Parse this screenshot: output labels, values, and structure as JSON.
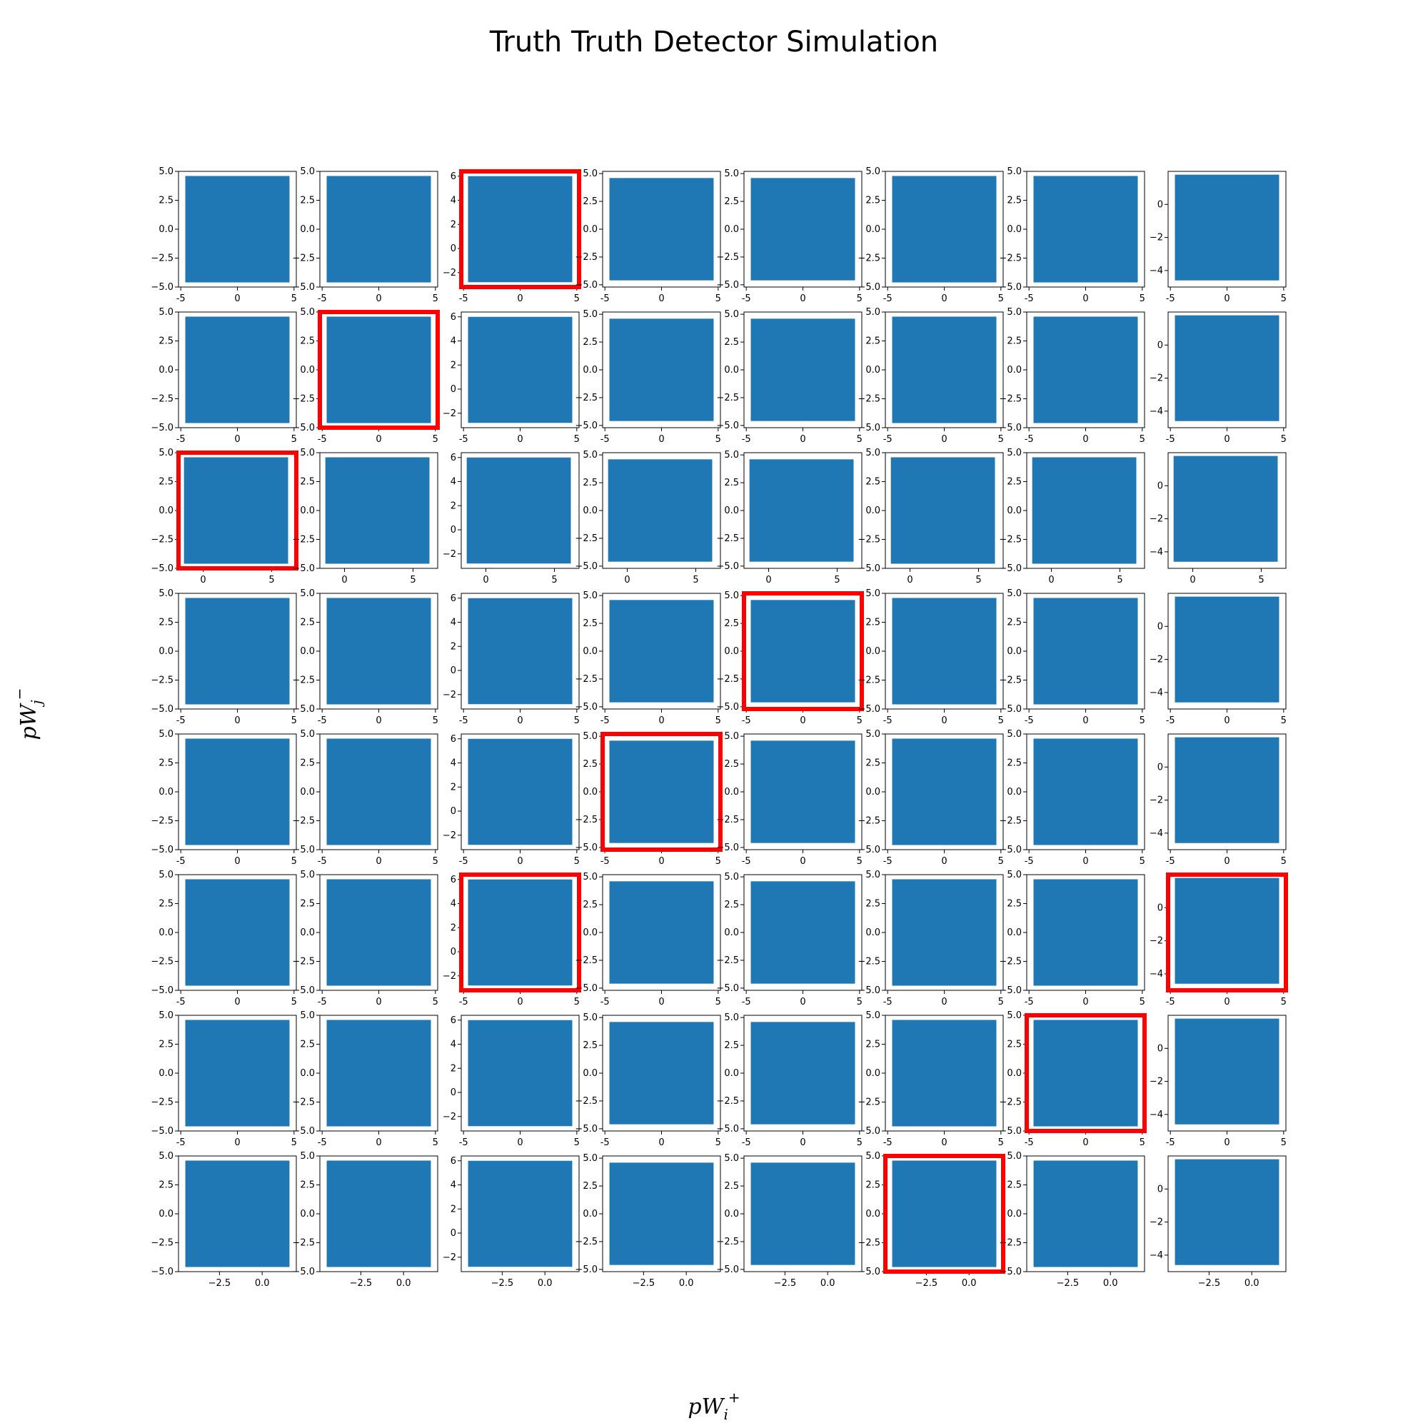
{
  "figure": {
    "title": "Truth Truth Detector Simulation",
    "xlabel": {
      "base": "pW",
      "sub": "i",
      "sup": "+"
    },
    "ylabel": {
      "base": "pW",
      "sub": "j",
      "sup": "−"
    }
  },
  "chart_data": {
    "type": "scatter",
    "title": "Truth Truth Detector Simulation",
    "grid": false,
    "point_color": "#1f77b4",
    "highlight_color": "#ff0000",
    "rows": 8,
    "cols": 8,
    "note_values": "Each subplot is a dense scatter of two truth variables; extents read from axes.",
    "column_xranges": [
      [
        [
          -5.2,
          5.2
        ],
        [
          -5.2,
          5.2
        ],
        [
          -5.2,
          5.2
        ],
        [
          -5.2,
          5.2
        ],
        [
          -5.2,
          5.2
        ],
        [
          -5.2,
          5.2
        ],
        [
          -5.2,
          5.2
        ],
        [
          -5.2,
          5.2
        ]
      ]
    ],
    "xranges_by_row": [
      [
        -5.2,
        5.2
      ],
      [
        -5.2,
        5.2
      ],
      [
        -1.8,
        6.8
      ],
      [
        -5.2,
        5.2
      ],
      [
        -5.2,
        5.2
      ],
      [
        -5.2,
        5.2
      ],
      [
        -5.2,
        5.2
      ],
      [
        -4.9,
        2.0
      ]
    ],
    "xticks_by_row": [
      [
        "-5",
        "0",
        "5"
      ],
      [
        "-5",
        "0",
        "5"
      ],
      [
        "0",
        "5"
      ],
      [
        "-5",
        "0",
        "5"
      ],
      [
        "-5",
        "0",
        "5"
      ],
      [
        "-5",
        "0",
        "5"
      ],
      [
        "-5",
        "0",
        "5"
      ],
      [
        "−2.5",
        "0.0"
      ]
    ],
    "xtickvals_by_row": [
      [
        -5,
        0,
        5
      ],
      [
        -5,
        0,
        5
      ],
      [
        0,
        5
      ],
      [
        -5,
        0,
        5
      ],
      [
        -5,
        0,
        5
      ],
      [
        -5,
        0,
        5
      ],
      [
        -5,
        0,
        5
      ],
      [
        -2.5,
        0
      ]
    ],
    "yranges_by_col": [
      [
        -5.0,
        5.0
      ],
      [
        -5.0,
        5.0
      ],
      [
        -3.2,
        6.4
      ],
      [
        -5.2,
        5.2
      ],
      [
        -5.2,
        5.2
      ],
      [
        -5.0,
        5.0
      ],
      [
        -5.0,
        5.0
      ],
      [
        -5.0,
        2.0
      ]
    ],
    "yticks_by_col": [
      [
        "−5.0",
        "−2.5",
        "0.0",
        "2.5",
        "5.0"
      ],
      [
        "−5.0",
        "−2.5",
        "0.0",
        "2.5",
        "5.0"
      ],
      [
        "−2",
        "0",
        "2",
        "4",
        "6"
      ],
      [
        "−5.0",
        "−2.5",
        "0.0",
        "2.5",
        "5.0"
      ],
      [
        "−5.0",
        "−2.5",
        "0.0",
        "2.5",
        "5.0"
      ],
      [
        "−5.0",
        "−2.5",
        "0.0",
        "2.5",
        "5.0"
      ],
      [
        "−5.0",
        "−2.5",
        "0.0",
        "2.5",
        "5.0"
      ],
      [
        "−4",
        "−2",
        "0"
      ]
    ],
    "ytickvals_by_col": [
      [
        -5,
        -2.5,
        0,
        2.5,
        5
      ],
      [
        -5,
        -2.5,
        0,
        2.5,
        5
      ],
      [
        -2,
        0,
        2,
        4,
        6
      ],
      [
        -5,
        -2.5,
        0,
        2.5,
        5
      ],
      [
        -5,
        -2.5,
        0,
        2.5,
        5
      ],
      [
        -5,
        -2.5,
        0,
        2.5,
        5
      ],
      [
        -5,
        -2.5,
        0,
        2.5,
        5
      ],
      [
        -4,
        -2,
        0
      ]
    ],
    "highlighted": [
      [
        0,
        2
      ],
      [
        1,
        1
      ],
      [
        2,
        0
      ],
      [
        3,
        4
      ],
      [
        4,
        3
      ],
      [
        5,
        2
      ],
      [
        5,
        7
      ],
      [
        6,
        6
      ],
      [
        7,
        5
      ]
    ],
    "distributions": {
      "default": {
        "x": [
          -4.6,
          4.6
        ],
        "y": [
          -4.6,
          4.6
        ]
      },
      "col2": {
        "y": [
          -2.8,
          6.0
        ]
      },
      "col7": {
        "y": [
          -4.6,
          1.8
        ]
      },
      "row2": {
        "x": [
          -1.4,
          6.2
        ]
      },
      "row7": {
        "x": [
          -4.5,
          1.6
        ]
      }
    }
  }
}
